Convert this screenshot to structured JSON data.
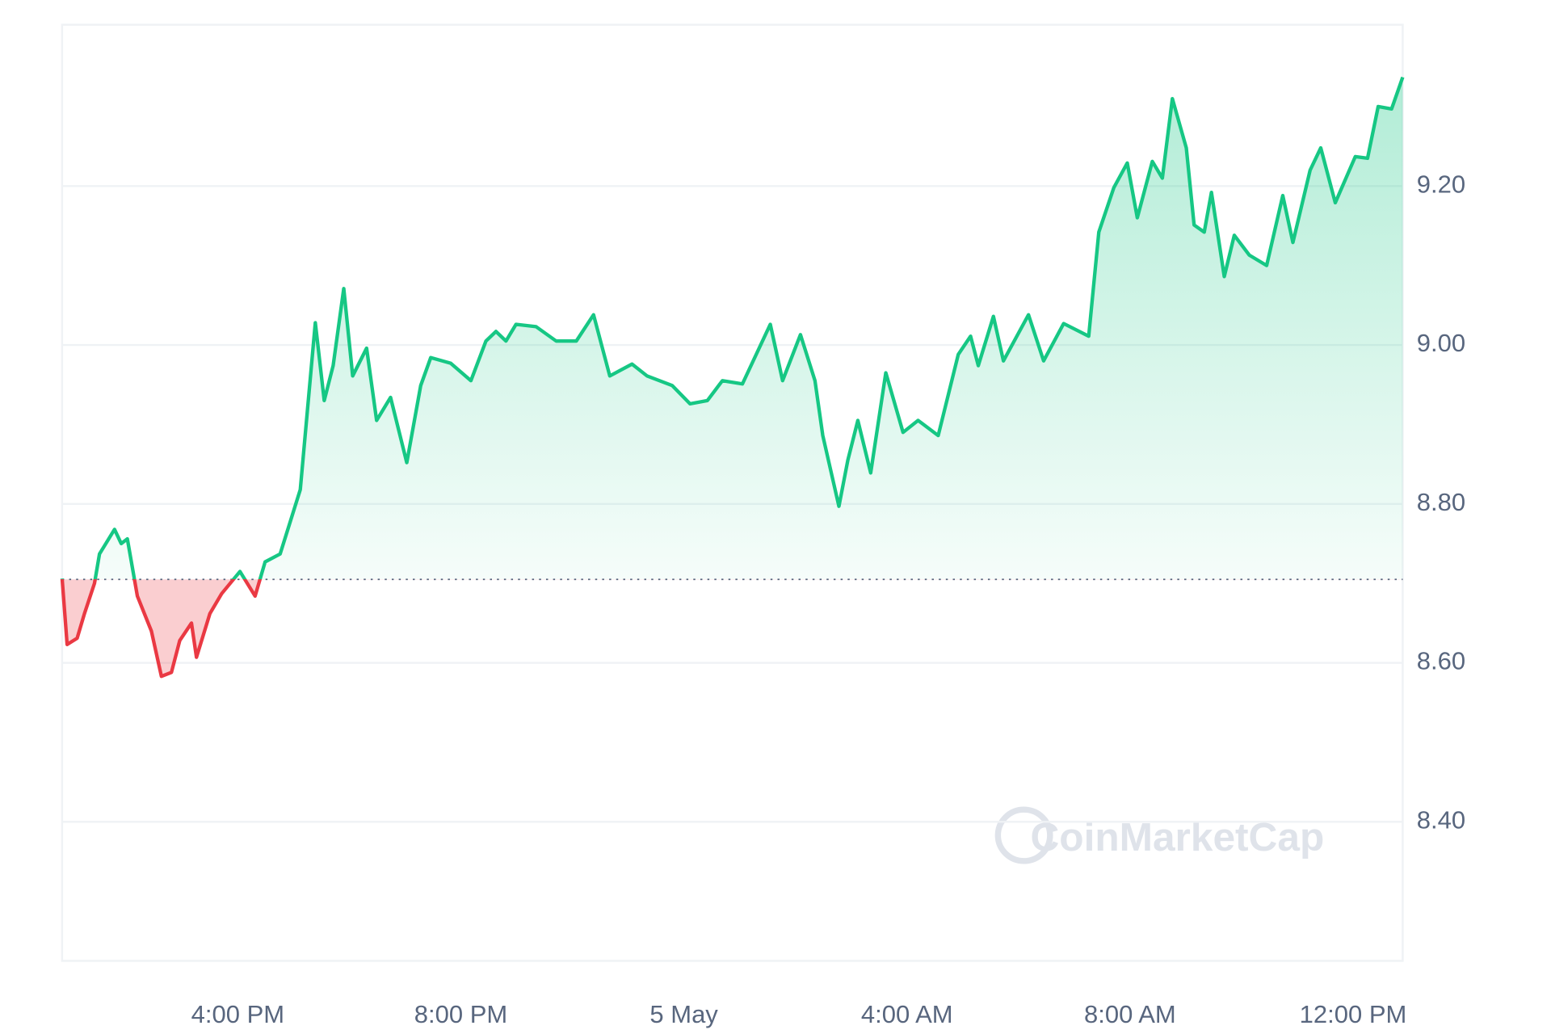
{
  "chart_data": {
    "type": "line",
    "watermark": "CoinMarketCap",
    "x": [
      12.85,
      12.94,
      13.12,
      13.25,
      13.43,
      13.52,
      13.79,
      13.91,
      14.02,
      14.2,
      14.45,
      14.63,
      14.81,
      14.96,
      15.17,
      15.26,
      15.5,
      15.71,
      16.04,
      16.31,
      16.49,
      16.76,
      17.12,
      17.39,
      17.55,
      17.71,
      17.9,
      18.06,
      18.31,
      18.49,
      18.74,
      19.03,
      19.28,
      19.46,
      19.82,
      20.18,
      20.45,
      20.63,
      20.81,
      20.99,
      21.35,
      21.71,
      22.07,
      22.38,
      22.67,
      23.07,
      23.34,
      23.79,
      24.11,
      24.42,
      24.69,
      25.05,
      25.55,
      25.77,
      26.09,
      26.35,
      26.49,
      26.78,
      26.94,
      27.12,
      27.35,
      27.62,
      27.93,
      28.2,
      28.56,
      28.92,
      29.14,
      29.28,
      29.55,
      29.73,
      30.18,
      30.45,
      30.81,
      31.26,
      31.44,
      31.71,
      31.95,
      32.13,
      32.4,
      32.58,
      32.76,
      33.01,
      33.15,
      33.33,
      33.46,
      33.69,
      33.87,
      34.14,
      34.45,
      34.74,
      34.92,
      35.23,
      35.42,
      35.68,
      36.04,
      36.26,
      36.45,
      36.69,
      36.89
    ],
    "values": [
      8.706,
      8.623,
      8.631,
      8.662,
      8.7,
      8.737,
      8.768,
      8.75,
      8.756,
      8.684,
      8.64,
      8.583,
      8.588,
      8.628,
      8.65,
      8.607,
      8.662,
      8.687,
      8.715,
      8.684,
      8.727,
      8.737,
      8.818,
      9.028,
      8.93,
      8.974,
      9.071,
      8.961,
      8.996,
      8.905,
      8.934,
      8.852,
      8.949,
      8.984,
      8.977,
      8.955,
      9.005,
      9.017,
      9.005,
      9.026,
      9.023,
      9.005,
      9.005,
      9.038,
      8.961,
      8.976,
      8.961,
      8.949,
      8.926,
      8.93,
      8.955,
      8.951,
      9.026,
      8.955,
      9.013,
      8.955,
      8.886,
      8.797,
      8.855,
      8.905,
      8.839,
      8.965,
      8.89,
      8.905,
      8.886,
      8.988,
      9.011,
      8.974,
      9.036,
      8.98,
      9.038,
      8.98,
      9.027,
      9.011,
      9.142,
      9.198,
      9.229,
      9.16,
      9.231,
      9.21,
      9.31,
      9.248,
      9.151,
      9.142,
      9.192,
      9.086,
      9.138,
      9.113,
      9.1,
      9.188,
      9.129,
      9.22,
      9.248,
      9.179,
      9.237,
      9.235,
      9.3,
      9.297,
      9.337
    ],
    "color": "#16c784",
    "down_color": "#ea3943",
    "baseline": 8.705,
    "xlim": [
      12.85,
      36.89
    ],
    "xticks": [
      {
        "value": 16,
        "label": "4:00 PM"
      },
      {
        "value": 20,
        "label": "8:00 PM"
      },
      {
        "value": 24,
        "label": "5 May"
      },
      {
        "value": 28,
        "label": "4:00 AM"
      },
      {
        "value": 32,
        "label": "8:00 AM"
      },
      {
        "value": 36,
        "label": "12:00 PM"
      }
    ],
    "ylim": [
      8.225,
      9.403
    ],
    "yticks": [
      {
        "value": 8.4,
        "label": "8.40"
      },
      {
        "value": 8.6,
        "label": "8.60"
      },
      {
        "value": 8.8,
        "label": "8.80"
      },
      {
        "value": 9.0,
        "label": "9.00"
      },
      {
        "value": 9.2,
        "label": "9.20"
      }
    ],
    "grid": true
  }
}
